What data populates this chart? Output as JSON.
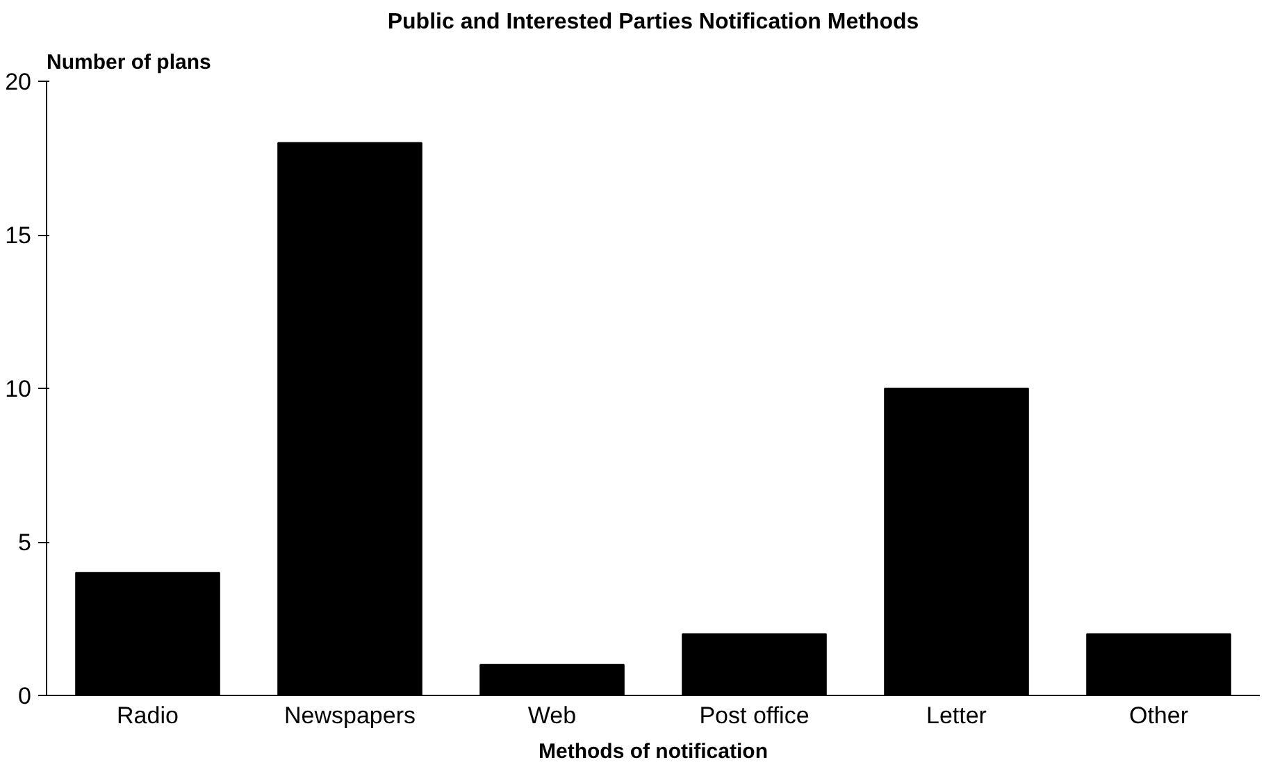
{
  "chart_data": {
    "type": "bar",
    "title": "Public and Interested Parties Notification Methods",
    "xlabel": "Methods of notification",
    "ylabel": "Number of plans",
    "categories": [
      "Radio",
      "Newspapers",
      "Web",
      "Post office",
      "Letter",
      "Other"
    ],
    "values": [
      4,
      18,
      1,
      2,
      10,
      2
    ],
    "color": "#000000",
    "ylim": [
      0,
      20
    ],
    "yticks": [
      0,
      5,
      10,
      15,
      20
    ],
    "grid": false
  }
}
